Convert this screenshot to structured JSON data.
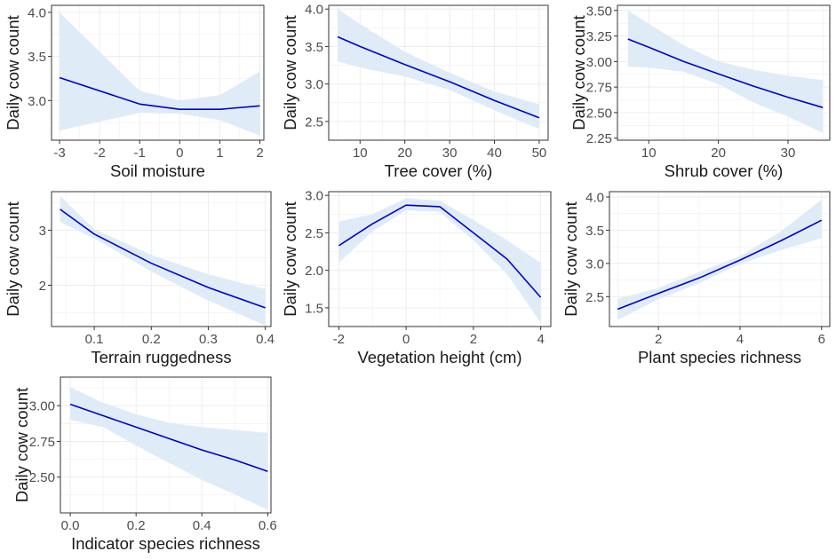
{
  "colors": {
    "line": "#0000CC",
    "ribbon": "#DDEBF7",
    "grid": "#EBEBEB",
    "frame": "#333333",
    "text": "#1A1A1A",
    "tick_text": "#4D4D4D"
  },
  "chart_data": [
    {
      "type": "line",
      "title": "",
      "xlabel": "Soil moisture",
      "ylabel": "Daily cow count",
      "xlim": [
        -3.2,
        2.1
      ],
      "ylim": [
        2.55,
        4.08
      ],
      "x_ticks": [
        -3,
        -2,
        -1,
        0,
        1,
        2
      ],
      "x_tick_labels": [
        "-3",
        "-2",
        "-1",
        "0",
        "1",
        "2"
      ],
      "y_ticks": [
        3.0,
        3.5,
        4.0
      ],
      "y_tick_labels": [
        "3.0",
        "3.5",
        "4.0"
      ],
      "grid": true,
      "series": [
        {
          "x": [
            -3,
            -1,
            0,
            1,
            2
          ],
          "y": [
            3.26,
            2.96,
            2.9,
            2.9,
            2.94
          ],
          "lower": [
            2.66,
            2.86,
            2.85,
            2.78,
            2.6
          ],
          "upper": [
            4.0,
            3.11,
            3.0,
            3.06,
            3.33
          ]
        }
      ]
    },
    {
      "type": "line",
      "title": "",
      "xlabel": "Tree cover (%)",
      "ylabel": "Daily cow count",
      "xlim": [
        3,
        52
      ],
      "ylim": [
        2.25,
        4.05
      ],
      "x_ticks": [
        10,
        20,
        30,
        40,
        50
      ],
      "x_tick_labels": [
        "10",
        "20",
        "30",
        "40",
        "50"
      ],
      "y_ticks": [
        2.5,
        3.0,
        3.5,
        4.0
      ],
      "y_tick_labels": [
        "2.5",
        "3.0",
        "3.5",
        "4.0"
      ],
      "grid": true,
      "series": [
        {
          "x": [
            5,
            10,
            20,
            30,
            40,
            50
          ],
          "y": [
            3.63,
            3.5,
            3.26,
            3.03,
            2.78,
            2.55
          ],
          "lower": [
            3.3,
            3.22,
            3.1,
            2.92,
            2.65,
            2.4
          ],
          "upper": [
            4.0,
            3.8,
            3.43,
            3.15,
            2.9,
            2.73
          ]
        }
      ]
    },
    {
      "type": "line",
      "title": "",
      "xlabel": "Shrub cover (%)",
      "ylabel": "Daily cow count",
      "xlim": [
        5.5,
        36
      ],
      "ylim": [
        2.23,
        3.55
      ],
      "x_ticks": [
        10,
        20,
        30
      ],
      "x_tick_labels": [
        "10",
        "20",
        "30"
      ],
      "y_ticks": [
        2.25,
        2.5,
        2.75,
        3.0,
        3.25,
        3.5
      ],
      "y_tick_labels": [
        "2.25",
        "2.50",
        "2.75",
        "3.00",
        "3.25",
        "3.50"
      ],
      "grid": true,
      "series": [
        {
          "x": [
            7,
            10,
            15,
            20,
            25,
            30,
            35
          ],
          "y": [
            3.22,
            3.14,
            3.0,
            2.88,
            2.76,
            2.65,
            2.55
          ],
          "lower": [
            2.95,
            2.94,
            2.9,
            2.78,
            2.6,
            2.46,
            2.3
          ],
          "upper": [
            3.5,
            3.37,
            3.16,
            3.0,
            2.92,
            2.86,
            2.82
          ]
        }
      ]
    },
    {
      "type": "line",
      "title": "",
      "xlabel": "Terrain ruggedness",
      "ylabel": "Daily cow count",
      "xlim": [
        0.025,
        0.41
      ],
      "ylim": [
        1.25,
        3.7
      ],
      "x_ticks": [
        0.1,
        0.2,
        0.3,
        0.4
      ],
      "x_tick_labels": [
        "0.1",
        "0.2",
        "0.3",
        "0.4"
      ],
      "y_ticks": [
        2,
        3
      ],
      "y_tick_labels": [
        "2",
        "3"
      ],
      "grid": true,
      "series": [
        {
          "x": [
            0.04,
            0.1,
            0.2,
            0.3,
            0.4
          ],
          "y": [
            3.38,
            2.93,
            2.4,
            1.96,
            1.59
          ],
          "lower": [
            3.15,
            2.85,
            2.25,
            1.72,
            1.27
          ],
          "upper": [
            3.62,
            3.02,
            2.55,
            2.2,
            1.93
          ]
        }
      ]
    },
    {
      "type": "line",
      "title": "",
      "xlabel": "Vegetation height (cm)",
      "ylabel": "Daily cow count",
      "xlim": [
        -2.3,
        4.3
      ],
      "ylim": [
        1.25,
        3.05
      ],
      "x_ticks": [
        -2,
        0,
        2,
        4
      ],
      "x_tick_labels": [
        "-2",
        "0",
        "2",
        "4"
      ],
      "y_ticks": [
        1.5,
        2.0,
        2.5,
        3.0
      ],
      "y_tick_labels": [
        "1.5",
        "2.0",
        "2.5",
        "3.0"
      ],
      "grid": true,
      "series": [
        {
          "x": [
            -2,
            -1,
            0,
            1,
            2,
            3,
            4
          ],
          "y": [
            2.33,
            2.62,
            2.87,
            2.85,
            2.5,
            2.15,
            1.64
          ],
          "lower": [
            2.1,
            2.52,
            2.8,
            2.78,
            2.4,
            1.95,
            1.3
          ],
          "upper": [
            2.65,
            2.75,
            2.96,
            2.93,
            2.67,
            2.4,
            2.1
          ]
        }
      ]
    },
    {
      "type": "line",
      "title": "",
      "xlabel": "Plant species richness",
      "ylabel": "Daily cow count",
      "xlim": [
        0.8,
        6.2
      ],
      "ylim": [
        2.05,
        4.08
      ],
      "x_ticks": [
        2,
        4,
        6
      ],
      "x_tick_labels": [
        "2",
        "4",
        "6"
      ],
      "y_ticks": [
        2.5,
        3.0,
        3.5,
        4.0
      ],
      "y_tick_labels": [
        "2.5",
        "3.0",
        "3.5",
        "4.0"
      ],
      "grid": true,
      "series": [
        {
          "x": [
            1,
            2,
            3,
            4,
            5,
            6
          ],
          "y": [
            2.31,
            2.55,
            2.78,
            3.05,
            3.34,
            3.65
          ],
          "lower": [
            2.15,
            2.46,
            2.7,
            2.99,
            3.2,
            3.38
          ],
          "upper": [
            2.47,
            2.63,
            2.87,
            3.11,
            3.48,
            3.96
          ]
        }
      ]
    },
    {
      "type": "line",
      "title": "",
      "xlabel": "Indicator species richness",
      "ylabel": "Daily cow count",
      "xlim": [
        -0.03,
        0.61
      ],
      "ylim": [
        2.25,
        3.2
      ],
      "x_ticks": [
        0.0,
        0.2,
        0.4,
        0.6
      ],
      "x_tick_labels": [
        "0.0",
        "0.2",
        "0.4",
        "0.6"
      ],
      "y_ticks": [
        2.5,
        2.75,
        3.0
      ],
      "y_tick_labels": [
        "2.50",
        "2.75",
        "3.00"
      ],
      "grid": true,
      "series": [
        {
          "x": [
            0.0,
            0.1,
            0.2,
            0.3,
            0.4,
            0.5,
            0.6
          ],
          "y": [
            3.01,
            2.93,
            2.85,
            2.77,
            2.69,
            2.62,
            2.54
          ],
          "lower": [
            2.9,
            2.85,
            2.72,
            2.6,
            2.48,
            2.38,
            2.27
          ],
          "upper": [
            3.13,
            3.02,
            2.94,
            2.88,
            2.85,
            2.83,
            2.81
          ]
        }
      ]
    }
  ]
}
